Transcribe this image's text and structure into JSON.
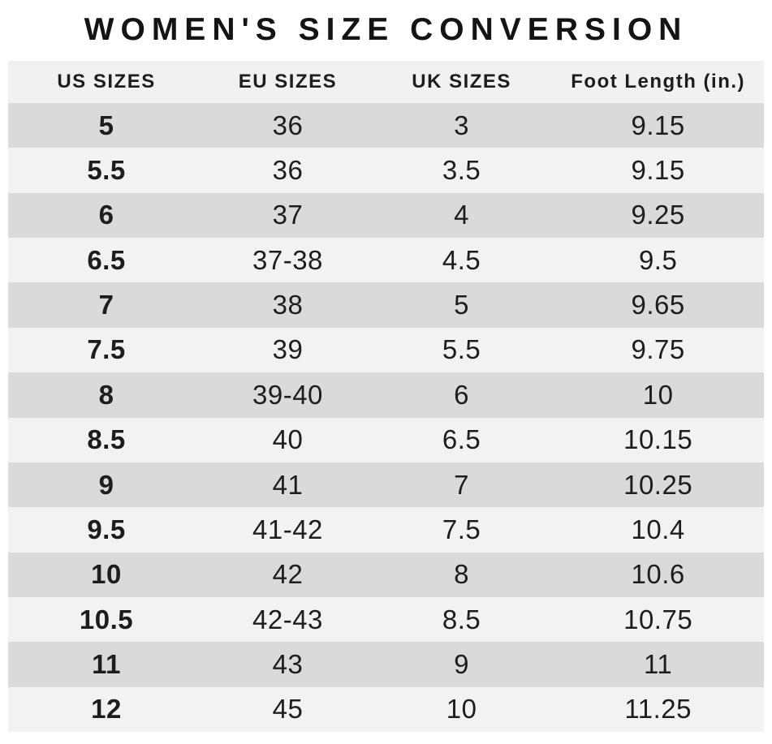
{
  "title": "WOMEN'S SIZE CONVERSION",
  "colors": {
    "background": "#ffffff",
    "header_bg": "#f1f1f2",
    "row_dark": "#d9dadb",
    "row_light": "#f2f2f3",
    "text": "#1d1d1f"
  },
  "chart_data": {
    "type": "table",
    "title": "WOMEN'S SIZE CONVERSION",
    "columns": [
      "US SIZES",
      "EU SIZES",
      "UK SIZES",
      "Foot Length (in.)"
    ],
    "rows": [
      [
        "5",
        "36",
        "3",
        "9.15"
      ],
      [
        "5.5",
        "36",
        "3.5",
        "9.15"
      ],
      [
        "6",
        "37",
        "4",
        "9.25"
      ],
      [
        "6.5",
        "37-38",
        "4.5",
        "9.5"
      ],
      [
        "7",
        "38",
        "5",
        "9.65"
      ],
      [
        "7.5",
        "39",
        "5.5",
        "9.75"
      ],
      [
        "8",
        "39-40",
        "6",
        "10"
      ],
      [
        "8.5",
        "40",
        "6.5",
        "10.15"
      ],
      [
        "9",
        "41",
        "7",
        "10.25"
      ],
      [
        "9.5",
        "41-42",
        "7.5",
        "10.4"
      ],
      [
        "10",
        "42",
        "8",
        "10.6"
      ],
      [
        "10.5",
        "42-43",
        "8.5",
        "10.75"
      ],
      [
        "11",
        "43",
        "9",
        "11"
      ],
      [
        "12",
        "45",
        "10",
        "11.25"
      ]
    ],
    "layout": {
      "row_striping": "alternating dark/light starting dark",
      "column_width_pct": [
        26,
        22,
        24,
        28
      ],
      "bold_column": "US SIZES"
    }
  }
}
